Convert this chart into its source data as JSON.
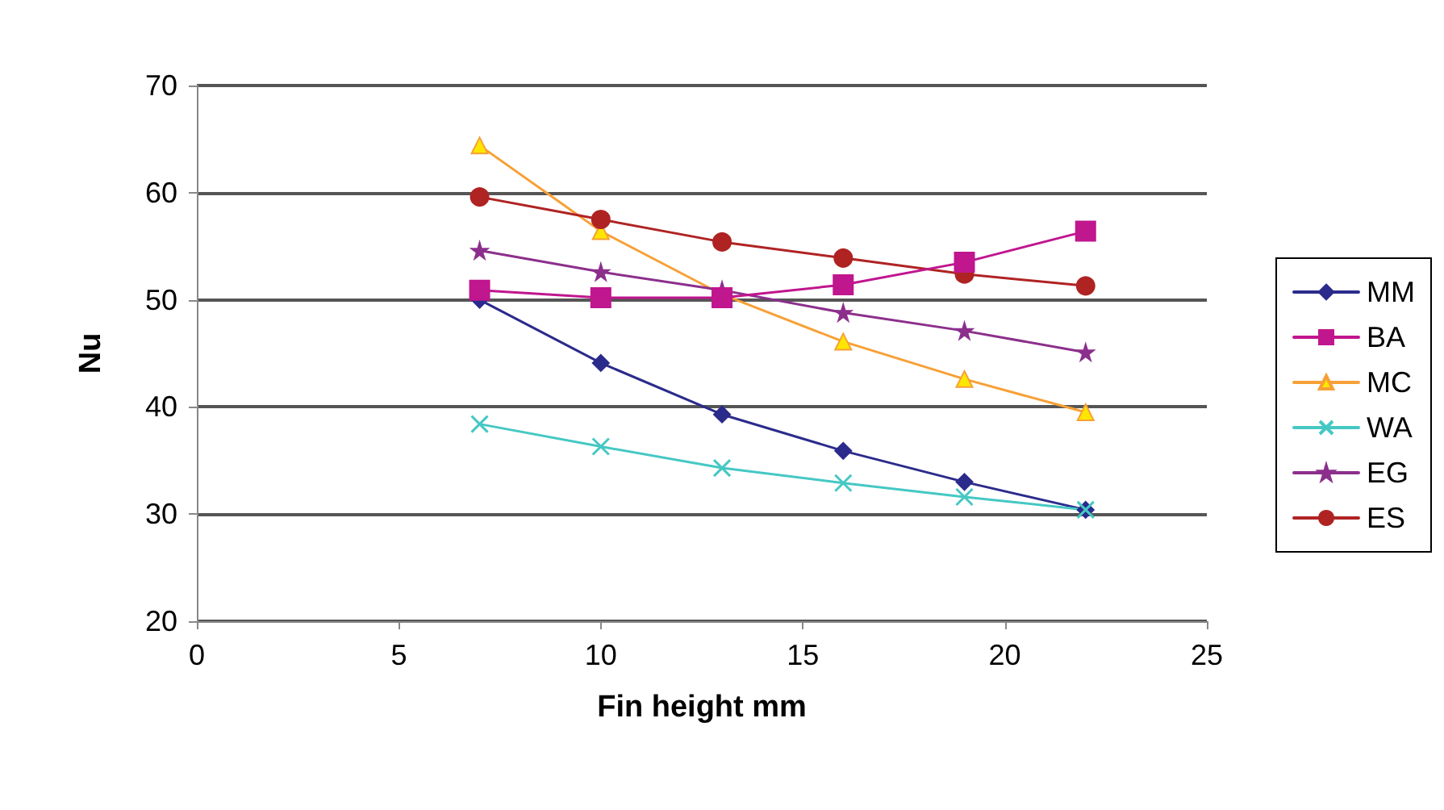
{
  "chart_data": {
    "type": "line",
    "xlabel": "Fin height mm",
    "ylabel": "Nu",
    "x": [
      7,
      10,
      13,
      16,
      19,
      22
    ],
    "series": [
      {
        "name": "MM",
        "color": "#2b2b8c",
        "marker": "diamond",
        "values": [
          50,
          44.1,
          39.3,
          35.9,
          33.0,
          30.4
        ]
      },
      {
        "name": "BA",
        "color": "#c0168e",
        "marker": "square",
        "values": [
          50.9,
          50.2,
          50.2,
          51.4,
          53.5,
          56.4
        ]
      },
      {
        "name": "MC",
        "color": "#f7a035",
        "marker": "triangle",
        "values": [
          64.4,
          56.4,
          50.5,
          46.1,
          42.6,
          39.5
        ]
      },
      {
        "name": "WA",
        "color": "#45c8c4",
        "marker": "cross",
        "values": [
          38.4,
          36.3,
          34.3,
          32.9,
          31.6,
          30.4
        ]
      },
      {
        "name": "EG",
        "color": "#8c2f8c",
        "marker": "star",
        "values": [
          54.6,
          52.6,
          50.9,
          48.8,
          47.1,
          45.1
        ]
      },
      {
        "name": "ES",
        "color": "#b02323",
        "marker": "circle",
        "values": [
          59.6,
          57.5,
          55.4,
          53.9,
          52.4,
          51.3
        ]
      }
    ],
    "xlim": [
      0,
      25
    ],
    "xticks": [
      0,
      5,
      10,
      15,
      20,
      25
    ],
    "ylim": [
      20,
      70
    ],
    "yticks": [
      20,
      30,
      40,
      50,
      60,
      70
    ],
    "grid": "y",
    "legend": "right",
    "line_style": "solid"
  }
}
